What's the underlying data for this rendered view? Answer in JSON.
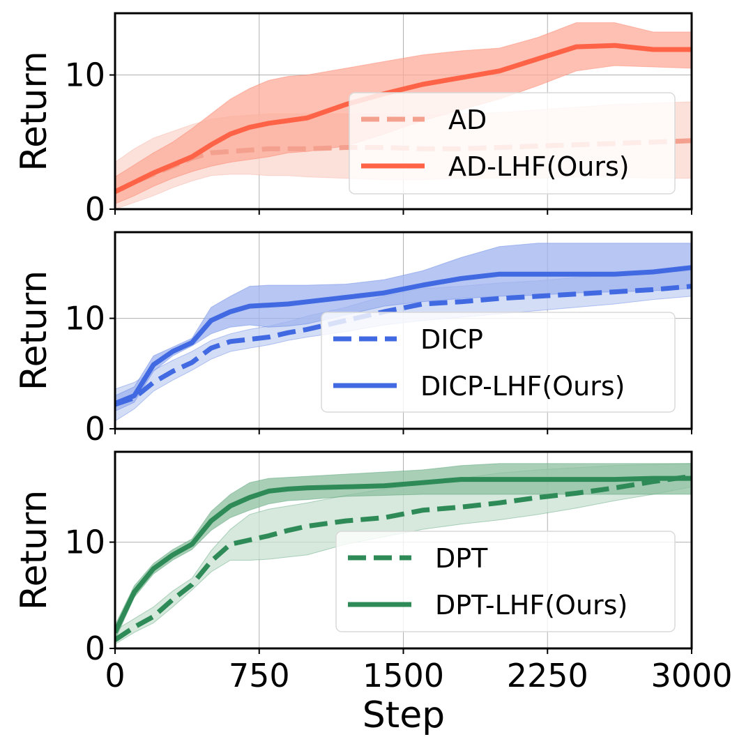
{
  "xlabel": "Step",
  "chart_data": [
    {
      "type": "line",
      "title": "",
      "xlabel": "",
      "ylabel": "Return",
      "xlim": [
        0,
        3000
      ],
      "ylim": [
        0,
        14.6
      ],
      "x_ticks": [
        "0",
        "750",
        "1500",
        "2250",
        "3000"
      ],
      "y_ticks": [
        "0",
        "10"
      ],
      "grid": true,
      "legend_position": "right",
      "series": [
        {
          "name": "AD",
          "style": "dashed",
          "color": "#f4a08e",
          "fill_color": "#fbd7cf",
          "x": [
            0,
            100,
            200,
            300,
            400,
            500,
            600,
            700,
            800,
            900,
            1000,
            1200,
            1400,
            1600,
            1800,
            2000,
            2200,
            2400,
            2600,
            2800,
            3000
          ],
          "y": [
            1.3,
            2.0,
            2.6,
            3.2,
            3.8,
            4.2,
            4.3,
            4.4,
            4.5,
            4.5,
            4.5,
            4.6,
            4.6,
            4.5,
            4.5,
            4.6,
            4.7,
            4.8,
            4.9,
            5.0,
            5.1
          ],
          "lower": [
            0.0,
            0.5,
            1.0,
            1.6,
            2.1,
            2.5,
            2.6,
            2.6,
            2.5,
            2.5,
            2.4,
            2.3,
            2.2,
            2.2,
            2.3,
            2.3,
            2.3,
            2.4,
            2.4,
            2.3,
            2.3
          ],
          "upper": [
            3.5,
            4.5,
            5.3,
            5.8,
            6.3,
            6.7,
            6.9,
            7.0,
            7.1,
            7.1,
            7.1,
            7.1,
            7.1,
            7.0,
            7.1,
            7.2,
            7.4,
            7.6,
            7.8,
            7.9,
            8.0
          ]
        },
        {
          "name": "AD-LHF(Ours)",
          "style": "solid",
          "color": "#ff6347",
          "fill_color": "#fcab98",
          "x": [
            0,
            100,
            200,
            300,
            400,
            500,
            600,
            700,
            800,
            900,
            1000,
            1200,
            1400,
            1600,
            1800,
            2000,
            2200,
            2400,
            2600,
            2800,
            3000
          ],
          "y": [
            1.3,
            2.0,
            2.7,
            3.3,
            3.9,
            4.8,
            5.6,
            6.1,
            6.4,
            6.6,
            6.8,
            7.8,
            8.6,
            9.3,
            9.8,
            10.3,
            11.2,
            12.1,
            12.2,
            11.9,
            11.9
          ],
          "lower": [
            0.4,
            1.0,
            1.7,
            2.3,
            2.8,
            3.2,
            3.5,
            3.7,
            3.9,
            4.2,
            4.3,
            4.7,
            5.6,
            6.6,
            7.4,
            8.2,
            9.2,
            10.3,
            10.7,
            10.6,
            10.5
          ],
          "upper": [
            2.4,
            3.3,
            4.2,
            5.0,
            6.0,
            7.1,
            8.2,
            9.0,
            9.6,
            9.9,
            10.0,
            10.5,
            11.0,
            11.5,
            11.8,
            12.0,
            12.8,
            13.9,
            13.9,
            13.2,
            13.2
          ]
        }
      ]
    },
    {
      "type": "line",
      "title": "",
      "xlabel": "",
      "ylabel": "Return",
      "xlim": [
        0,
        3000
      ],
      "ylim": [
        0,
        17.8
      ],
      "x_ticks": [
        "0",
        "750",
        "1500",
        "2250",
        "3000"
      ],
      "y_ticks": [
        "0",
        "10"
      ],
      "grid": true,
      "legend_position": "lower right",
      "series": [
        {
          "name": "DICP",
          "style": "dashed",
          "color": "#4169e1",
          "fill_color": "#c5d2f3",
          "x": [
            0,
            100,
            200,
            300,
            400,
            500,
            600,
            700,
            800,
            900,
            1000,
            1200,
            1400,
            1600,
            1800,
            2000,
            2200,
            2400,
            2600,
            2800,
            3000
          ],
          "y": [
            2.2,
            2.8,
            4.2,
            5.2,
            6.0,
            7.3,
            7.9,
            8.1,
            8.3,
            8.7,
            9.0,
            9.8,
            10.6,
            11.3,
            11.5,
            11.8,
            12.0,
            12.2,
            12.4,
            12.6,
            12.9
          ],
          "lower": [
            0.7,
            1.8,
            3.4,
            4.4,
            5.3,
            6.3,
            7.0,
            7.3,
            7.6,
            8.0,
            8.3,
            8.8,
            9.4,
            9.8,
            10.1,
            10.4,
            10.7,
            11.0,
            11.3,
            11.7,
            12.0
          ],
          "upper": [
            3.6,
            4.2,
            5.3,
            6.2,
            7.0,
            8.0,
            8.6,
            9.0,
            9.3,
            9.7,
            10.2,
            11.0,
            12.0,
            12.7,
            12.9,
            13.2,
            13.4,
            13.7,
            13.9,
            14.1,
            14.3
          ]
        },
        {
          "name": "DICP-LHF(Ours)",
          "style": "solid",
          "color": "#4169e1",
          "fill_color": "#9fb3ee",
          "x": [
            0,
            100,
            200,
            300,
            400,
            500,
            600,
            700,
            800,
            900,
            1000,
            1200,
            1400,
            1600,
            1800,
            2000,
            2200,
            2400,
            2600,
            2800,
            3000
          ],
          "y": [
            2.3,
            3.0,
            5.8,
            7.0,
            7.8,
            9.8,
            10.6,
            11.1,
            11.2,
            11.3,
            11.5,
            11.9,
            12.3,
            13.0,
            13.6,
            14.0,
            14.0,
            14.0,
            14.0,
            14.2,
            14.6
          ],
          "lower": [
            1.6,
            2.4,
            5.2,
            6.6,
            7.5,
            8.6,
            9.2,
            9.4,
            9.2,
            9.3,
            9.5,
            10.3,
            11.1,
            11.5,
            11.8,
            12.0,
            12.1,
            12.3,
            12.4,
            12.5,
            12.7
          ],
          "upper": [
            3.0,
            3.8,
            6.6,
            7.4,
            8.2,
            11.0,
            12.0,
            12.9,
            13.0,
            13.0,
            13.0,
            13.1,
            13.5,
            14.3,
            15.5,
            16.5,
            16.8,
            16.8,
            16.8,
            16.8,
            16.8
          ]
        }
      ]
    },
    {
      "type": "line",
      "title": "",
      "xlabel": "Step",
      "ylabel": "Return",
      "xlim": [
        0,
        3000
      ],
      "ylim": [
        0,
        18.5
      ],
      "x_ticks": [
        "0",
        "750",
        "1500",
        "2250",
        "3000"
      ],
      "y_ticks": [
        "0",
        "10"
      ],
      "grid": true,
      "legend_position": "lower right",
      "series": [
        {
          "name": "DPT",
          "style": "dashed",
          "color": "#2e8b57",
          "fill_color": "#c9e2d2",
          "x": [
            0,
            100,
            200,
            300,
            400,
            500,
            600,
            700,
            800,
            900,
            1000,
            1200,
            1400,
            1600,
            1800,
            2000,
            2200,
            2400,
            2600,
            2800,
            3000
          ],
          "y": [
            0.8,
            2.0,
            3.0,
            4.6,
            6.0,
            8.2,
            9.8,
            10.2,
            10.6,
            11.1,
            11.5,
            12.0,
            12.3,
            13.0,
            13.3,
            13.7,
            14.2,
            14.6,
            15.1,
            15.7,
            16.2
          ],
          "lower": [
            0.4,
            1.5,
            2.4,
            3.9,
            5.5,
            7.2,
            8.3,
            8.3,
            8.4,
            8.6,
            8.8,
            9.8,
            10.5,
            11.2,
            11.7,
            12.1,
            12.6,
            13.2,
            13.9,
            14.5,
            15.2
          ],
          "upper": [
            1.7,
            2.8,
            3.9,
            5.4,
            6.6,
            9.2,
            11.2,
            12.6,
            13.1,
            13.4,
            13.7,
            14.4,
            15.0,
            15.5,
            16.0,
            16.5,
            16.8,
            17.0,
            17.2,
            17.3,
            17.4
          ]
        },
        {
          "name": "DPT-LHF(Ours)",
          "style": "solid",
          "color": "#2e8b57",
          "fill_color": "#8cbf9f",
          "x": [
            0,
            100,
            200,
            300,
            400,
            500,
            600,
            700,
            800,
            900,
            1000,
            1200,
            1400,
            1600,
            1800,
            2000,
            2200,
            2400,
            2600,
            2800,
            3000
          ],
          "y": [
            1.5,
            5.3,
            7.5,
            8.8,
            9.8,
            12.0,
            13.4,
            14.2,
            14.8,
            15.0,
            15.1,
            15.2,
            15.3,
            15.6,
            15.9,
            15.9,
            15.9,
            15.9,
            15.9,
            16.0,
            16.0
          ],
          "lower": [
            0.8,
            4.8,
            7.0,
            8.3,
            9.3,
            11.1,
            12.3,
            13.0,
            13.6,
            13.9,
            14.0,
            14.3,
            14.4,
            14.5,
            14.5,
            14.5,
            14.5,
            14.5,
            14.5,
            14.5,
            14.5
          ],
          "upper": [
            2.2,
            5.9,
            8.0,
            9.3,
            10.3,
            12.9,
            14.5,
            15.6,
            16.0,
            16.1,
            16.2,
            16.4,
            16.6,
            16.8,
            17.2,
            17.4,
            17.4,
            17.4,
            17.4,
            17.4,
            17.4
          ]
        }
      ]
    }
  ]
}
